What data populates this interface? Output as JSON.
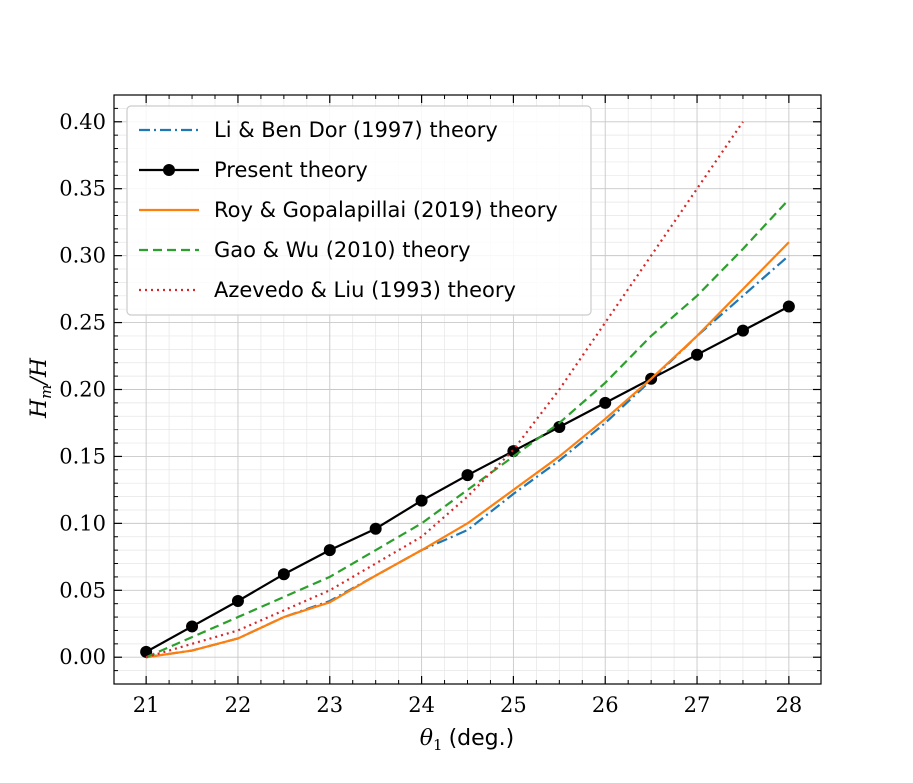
{
  "chart_data": {
    "type": "line",
    "title": "",
    "xlabel": "θ1 (deg.)",
    "xlabel_symbol": "θ",
    "xlabel_subscript": "1",
    "xlabel_unit": "(deg.)",
    "ylabel": "Hm/H",
    "ylabel_main": "H",
    "ylabel_subscript": "m",
    "ylabel_tail": "/H",
    "xlim": [
      20.65,
      28.35
    ],
    "ylim": [
      -0.02,
      0.42
    ],
    "xticks": [
      21,
      22,
      23,
      24,
      25,
      26,
      27,
      28
    ],
    "xtick_labels": [
      "21",
      "22",
      "23",
      "24",
      "25",
      "26",
      "27",
      "28"
    ],
    "yticks": [
      0.0,
      0.05,
      0.1,
      0.15,
      0.2,
      0.25,
      0.3,
      0.35,
      0.4
    ],
    "ytick_labels": [
      "0.00",
      "0.05",
      "0.10",
      "0.15",
      "0.20",
      "0.25",
      "0.30",
      "0.35",
      "0.40"
    ],
    "grid": true,
    "minor_grid": true,
    "legend_position": "top-left",
    "series": [
      {
        "name": "Li & Ben Dor (1997) theory",
        "color": "#1f77b4",
        "style": "dashdot",
        "marker": "none",
        "x": [
          21,
          21.5,
          22,
          22.5,
          23,
          23.5,
          24,
          24.5,
          25,
          25.5,
          26,
          26.5,
          27,
          27.5,
          28
        ],
        "y": [
          0.0,
          0.005,
          0.014,
          0.03,
          0.042,
          0.061,
          0.08,
          0.095,
          0.122,
          0.147,
          0.175,
          0.207,
          0.24,
          0.27,
          0.3
        ]
      },
      {
        "name": "Present theory",
        "color": "#000000",
        "style": "solid",
        "marker": "circle",
        "x": [
          21,
          21.5,
          22,
          22.5,
          23,
          23.5,
          24,
          24.5,
          25,
          25.5,
          26,
          26.5,
          27,
          27.5,
          28
        ],
        "y": [
          0.004,
          0.023,
          0.042,
          0.062,
          0.08,
          0.096,
          0.117,
          0.136,
          0.154,
          0.172,
          0.19,
          0.208,
          0.226,
          0.244,
          0.262
        ]
      },
      {
        "name": "Roy & Gopalapillai (2019) theory",
        "color": "#ff7f0e",
        "style": "solid",
        "marker": "none",
        "x": [
          21,
          21.5,
          22,
          22.5,
          23,
          23.5,
          24,
          24.5,
          25,
          25.5,
          26,
          26.5,
          27,
          27.5,
          28
        ],
        "y": [
          0.0,
          0.005,
          0.014,
          0.03,
          0.041,
          0.061,
          0.08,
          0.1,
          0.125,
          0.15,
          0.178,
          0.208,
          0.24,
          0.275,
          0.31
        ]
      },
      {
        "name": "Gao & Wu (2010) theory",
        "color": "#2ca02c",
        "style": "dashed",
        "marker": "none",
        "x": [
          21,
          21.5,
          22,
          22.5,
          23,
          23.5,
          24,
          24.5,
          25,
          25.5,
          26,
          26.5,
          27,
          27.5,
          28
        ],
        "y": [
          0.0,
          0.015,
          0.03,
          0.045,
          0.06,
          0.08,
          0.1,
          0.125,
          0.15,
          0.175,
          0.205,
          0.24,
          0.27,
          0.305,
          0.342
        ]
      },
      {
        "name": "Azevedo & Liu (1993) theory",
        "color": "#d62728",
        "style": "dotted",
        "marker": "none",
        "x": [
          21,
          21.5,
          22,
          22.5,
          23,
          23.5,
          24,
          24.5,
          25,
          25.5,
          26,
          26.5,
          27,
          27.5
        ],
        "y": [
          0.0,
          0.01,
          0.02,
          0.035,
          0.05,
          0.07,
          0.09,
          0.12,
          0.155,
          0.2,
          0.25,
          0.3,
          0.35,
          0.4
        ]
      }
    ]
  }
}
